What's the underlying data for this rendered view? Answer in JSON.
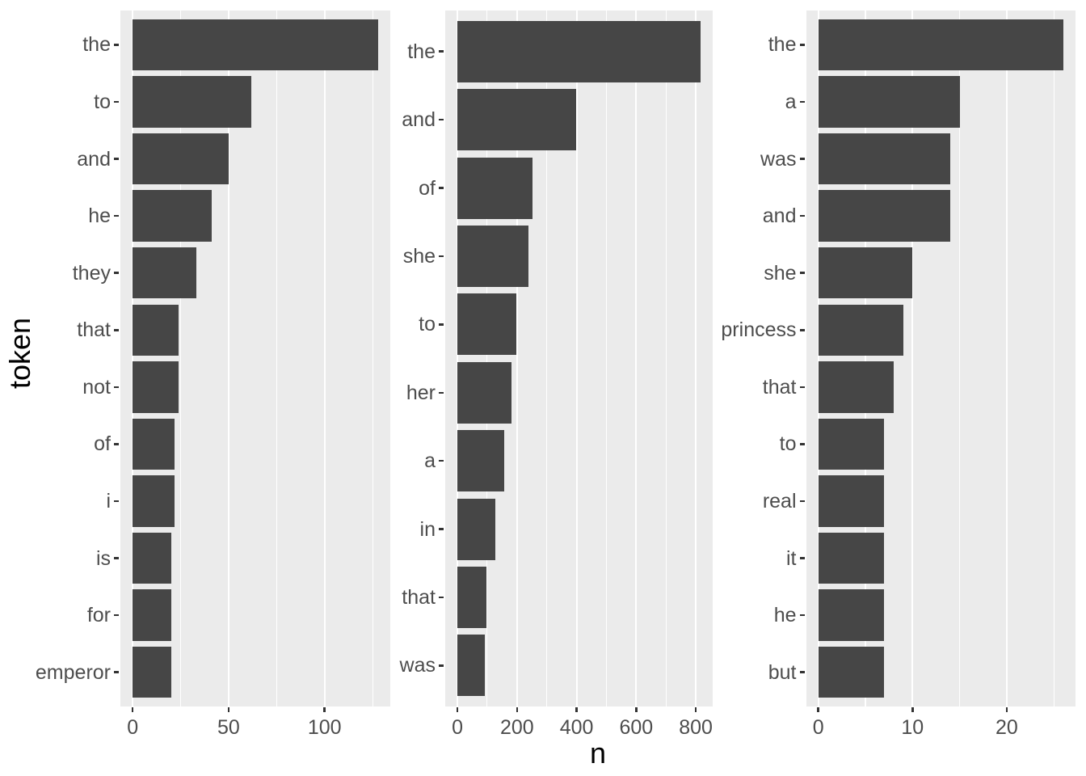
{
  "chart_data": {
    "type": "bar",
    "orientation": "horizontal",
    "title": "",
    "xlabel": "n",
    "ylabel": "token",
    "grid": "major-and-minor",
    "legend": "none",
    "facets": [
      {
        "name": "facet-1",
        "tokens": [
          "the",
          "to",
          "and",
          "he",
          "they",
          "that",
          "not",
          "of",
          "i",
          "is",
          "for",
          "emperor"
        ],
        "values": [
          128,
          62,
          50,
          41,
          33,
          24,
          24,
          22,
          22,
          20,
          20,
          20
        ],
        "x_ticks": [
          0,
          50,
          100
        ],
        "x_minor_ticks": [
          25,
          75,
          125
        ],
        "x_domain": [
          -6.4,
          134.4
        ]
      },
      {
        "name": "facet-2",
        "tokens": [
          "the",
          "and",
          "of",
          "she",
          "to",
          "her",
          "a",
          "in",
          "that",
          "was"
        ],
        "values": [
          817,
          398,
          252,
          239,
          199,
          181,
          157,
          126,
          97,
          93
        ],
        "x_ticks": [
          0,
          200,
          400,
          600,
          800
        ],
        "x_minor_ticks": [
          100,
          300,
          500,
          700
        ],
        "x_domain": [
          -40.85,
          857.85
        ]
      },
      {
        "name": "facet-3",
        "tokens": [
          "the",
          "a",
          "was",
          "and",
          "she",
          "princess",
          "that",
          "to",
          "real",
          "it",
          "he",
          "but"
        ],
        "values": [
          26,
          15,
          14,
          14,
          10,
          9,
          8,
          7,
          7,
          7,
          7,
          7
        ],
        "x_ticks": [
          0,
          10,
          20
        ],
        "x_minor_ticks": [
          5,
          15,
          25
        ],
        "x_domain": [
          -1.3,
          27.3
        ]
      }
    ],
    "colors": {
      "bar": "#464646",
      "panel_bg": "#EBEBEB",
      "gridline": "#FFFFFF",
      "axis_text": "#4D4D4D",
      "axis_title": "#000000",
      "tick_mark": "#333333",
      "page_bg": "#FFFFFF"
    }
  }
}
